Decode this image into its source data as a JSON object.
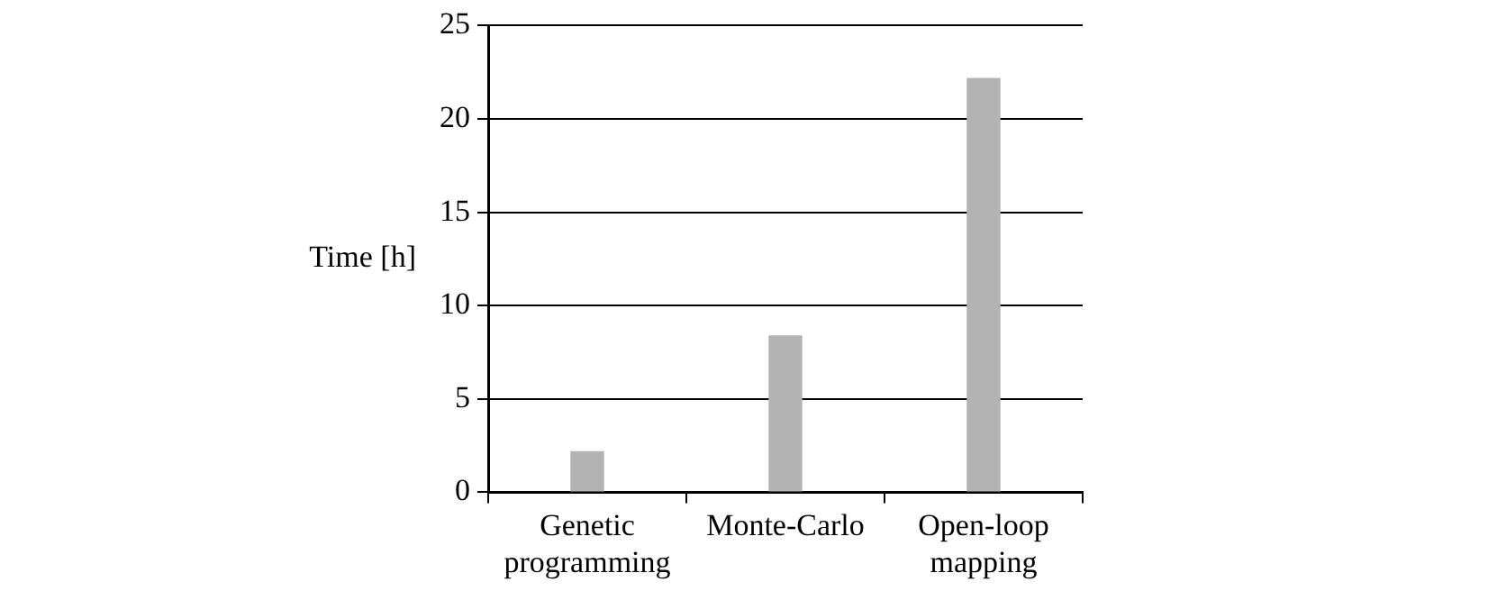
{
  "chart_data": {
    "type": "bar",
    "ylabel": "Time [h]",
    "categories": [
      "Genetic programming",
      "Monte-Carlo",
      "Open-loop mapping"
    ],
    "values": [
      2.2,
      8.4,
      22.2
    ],
    "color": "#b3b3b3",
    "ylim": [
      0,
      25
    ],
    "yticks": [
      0,
      5,
      10,
      15,
      20,
      25
    ],
    "grid": "y",
    "legend": false
  }
}
